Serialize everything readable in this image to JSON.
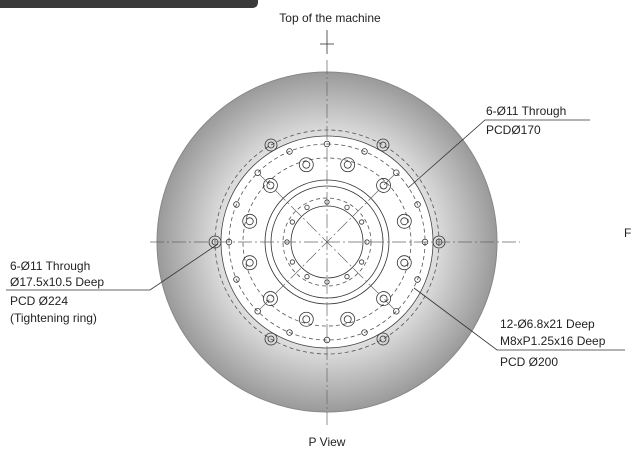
{
  "top_label": "Top of the machine",
  "callouts": {
    "upper_right": {
      "line1": "6-Ø11 Through",
      "line2": "PCDØ170"
    },
    "left": {
      "line1": "6-Ø11 Through",
      "line2": "Ø17.5x10.5 Deep",
      "line3": "PCD Ø224",
      "line4": "(Tightening ring)"
    },
    "lower_right": {
      "line1": "12-Ø6.8x21 Deep",
      "line2": "M8xP1.25x16 Deep",
      "line3": "PCD Ø200"
    }
  },
  "edge_label": "F",
  "view_label": "P View"
}
